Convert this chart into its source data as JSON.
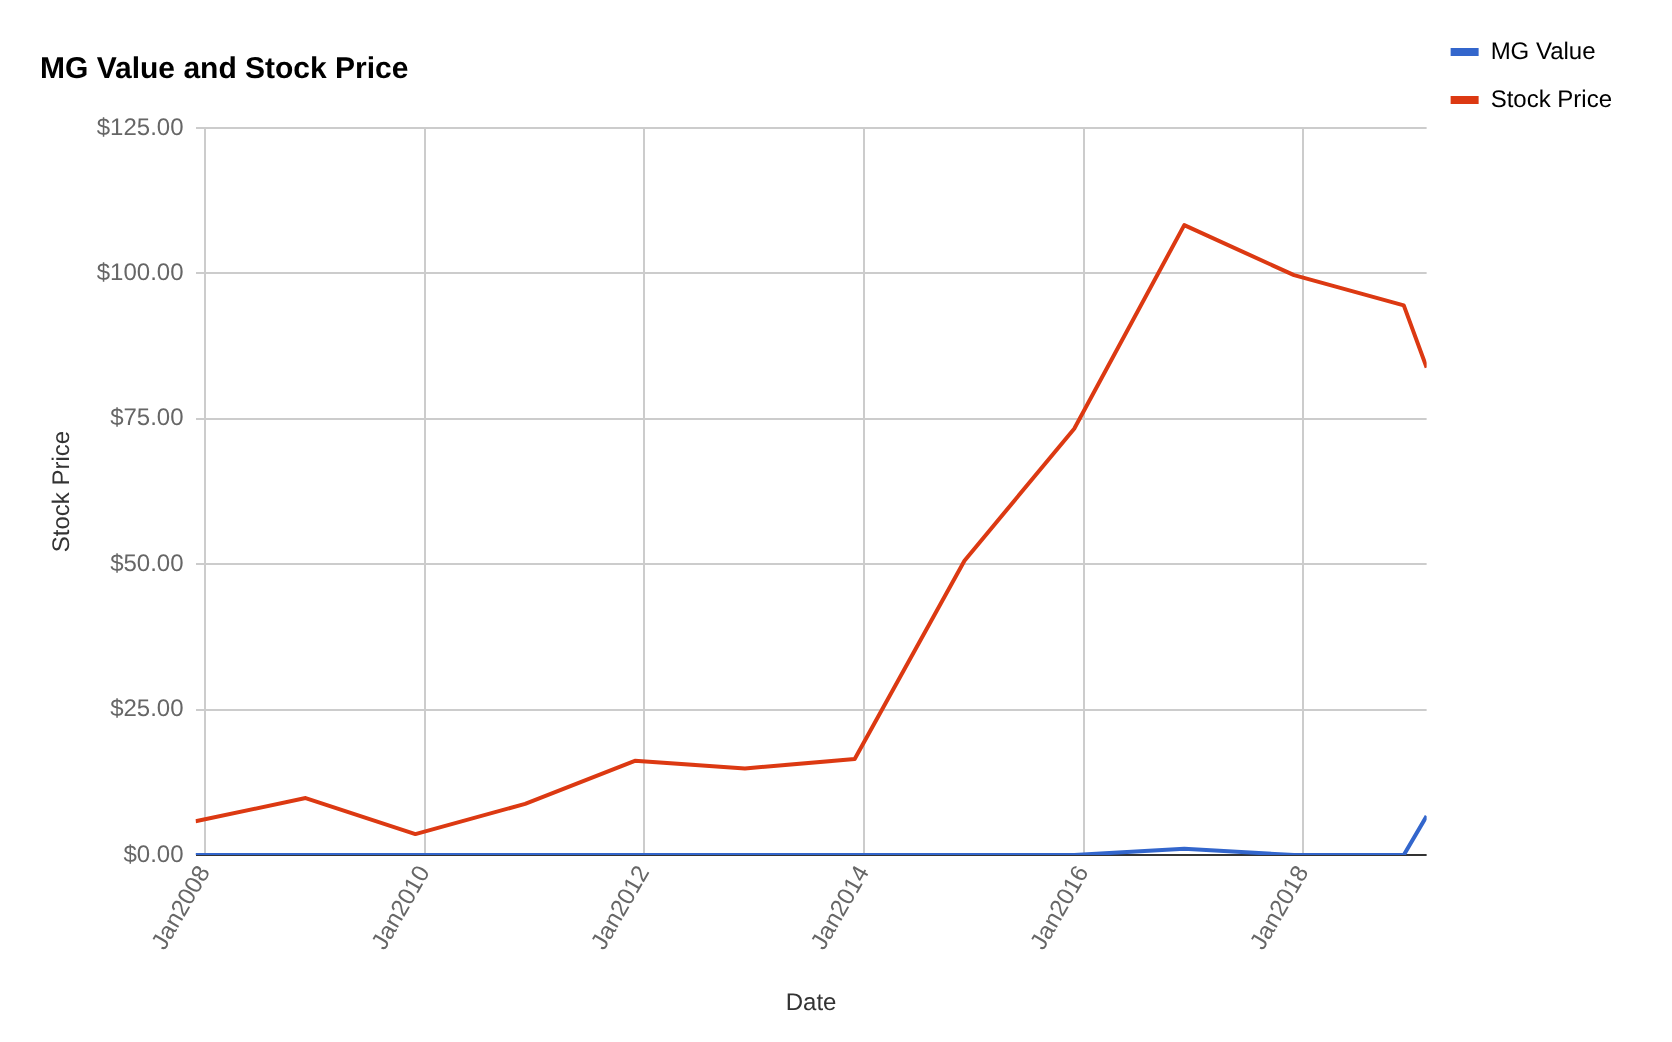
{
  "chart_data": {
    "type": "line",
    "title": "MG Value and Stock Price",
    "xlabel": "Date",
    "ylabel": "Stock Price",
    "x": [
      "2007-12",
      "2008-12",
      "2009-12",
      "2010-12",
      "2011-12",
      "2012-12",
      "2013-12",
      "2014-12",
      "2015-12",
      "2016-12",
      "2017-12",
      "2018-12",
      "2019-02-15"
    ],
    "series": [
      {
        "name": "MG Value",
        "color": "#3366cc",
        "values": [
          0,
          0,
          0,
          0,
          0,
          0,
          0,
          0,
          0,
          1.1,
          0,
          0,
          6.7
        ]
      },
      {
        "name": "Stock Price",
        "color": "#dc3912",
        "values": [
          5.8,
          9.8,
          3.6,
          8.8,
          16.2,
          14.9,
          16.5,
          50.6,
          73.3,
          108.3,
          99.7,
          94.5,
          83.8
        ]
      }
    ],
    "xlim": [
      "2007-12",
      "2019-02-15"
    ],
    "xticks": [
      {
        "value": "2008-01",
        "label": "Jan2008"
      },
      {
        "value": "2010-01",
        "label": "Jan2010"
      },
      {
        "value": "2012-01",
        "label": "Jan2012"
      },
      {
        "value": "2014-01",
        "label": "Jan2014"
      },
      {
        "value": "2016-01",
        "label": "Jan2016"
      },
      {
        "value": "2018-01",
        "label": "Jan2018"
      }
    ],
    "ylim": [
      0,
      125
    ],
    "yticks": [
      {
        "value": 0,
        "label": "$0.00"
      },
      {
        "value": 25,
        "label": "$25.00"
      },
      {
        "value": 50,
        "label": "$50.00"
      },
      {
        "value": 75,
        "label": "$75.00"
      },
      {
        "value": 100,
        "label": "$100.00"
      },
      {
        "value": 125,
        "label": "$125.00"
      }
    ],
    "grid": true,
    "legend": "top right",
    "marker": "none",
    "line_style": "solid"
  }
}
